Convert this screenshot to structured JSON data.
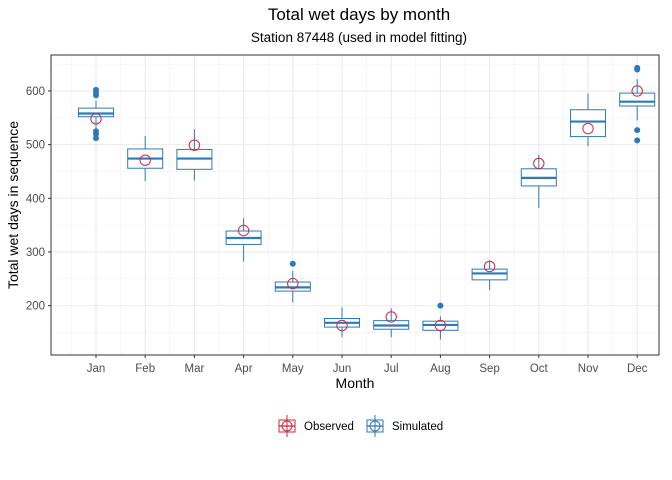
{
  "chart_data": {
    "type": "boxplot",
    "title": "Total wet days by month",
    "subtitle": "Station 87448 (used in model fitting)",
    "xlabel": "Month",
    "ylabel": "Total wet days in sequence",
    "categories": [
      "Jan",
      "Feb",
      "Mar",
      "Apr",
      "May",
      "Jun",
      "Jul",
      "Aug",
      "Sep",
      "Oct",
      "Nov",
      "Dec"
    ],
    "ylim": [
      108,
      667
    ],
    "yticks": [
      200,
      300,
      400,
      500,
      600
    ],
    "grid": true,
    "legend_position": "bottom",
    "colors": {
      "observed": "#d7263d",
      "simulated": "#2e7ab8"
    },
    "series": [
      {
        "name": "Observed",
        "kind": "points",
        "values": [
          548,
          471,
          499,
          340,
          241,
          163,
          179,
          163,
          273,
          465,
          530,
          600
        ]
      },
      {
        "name": "Simulated",
        "kind": "box",
        "boxes": [
          {
            "min": 530,
            "q1": 552,
            "median": 558,
            "q3": 568,
            "max": 582,
            "outliers": [
              512,
              520,
              525,
              592,
              597,
              602
            ]
          },
          {
            "min": 432,
            "q1": 456,
            "median": 474,
            "q3": 492,
            "max": 516,
            "outliers": []
          },
          {
            "min": 433,
            "q1": 454,
            "median": 474,
            "q3": 491,
            "max": 529,
            "outliers": []
          },
          {
            "min": 282,
            "q1": 314,
            "median": 326,
            "q3": 339,
            "max": 363,
            "outliers": []
          },
          {
            "min": 206,
            "q1": 227,
            "median": 234,
            "q3": 244,
            "max": 265,
            "outliers": [
              278
            ]
          },
          {
            "min": 141,
            "q1": 160,
            "median": 168,
            "q3": 176,
            "max": 197,
            "outliers": []
          },
          {
            "min": 141,
            "q1": 156,
            "median": 163,
            "q3": 172,
            "max": 195,
            "outliers": []
          },
          {
            "min": 137,
            "q1": 154,
            "median": 164,
            "q3": 171,
            "max": 180,
            "outliers": [
              200
            ]
          },
          {
            "min": 229,
            "q1": 248,
            "median": 260,
            "q3": 268,
            "max": 284,
            "outliers": []
          },
          {
            "min": 382,
            "q1": 423,
            "median": 438,
            "q3": 455,
            "max": 481,
            "outliers": []
          },
          {
            "min": 497,
            "q1": 515,
            "median": 543,
            "q3": 565,
            "max": 595,
            "outliers": []
          },
          {
            "min": 545,
            "q1": 572,
            "median": 580,
            "q3": 596,
            "max": 622,
            "outliers": [
              508,
              527,
              640,
              643
            ]
          }
        ]
      }
    ]
  }
}
